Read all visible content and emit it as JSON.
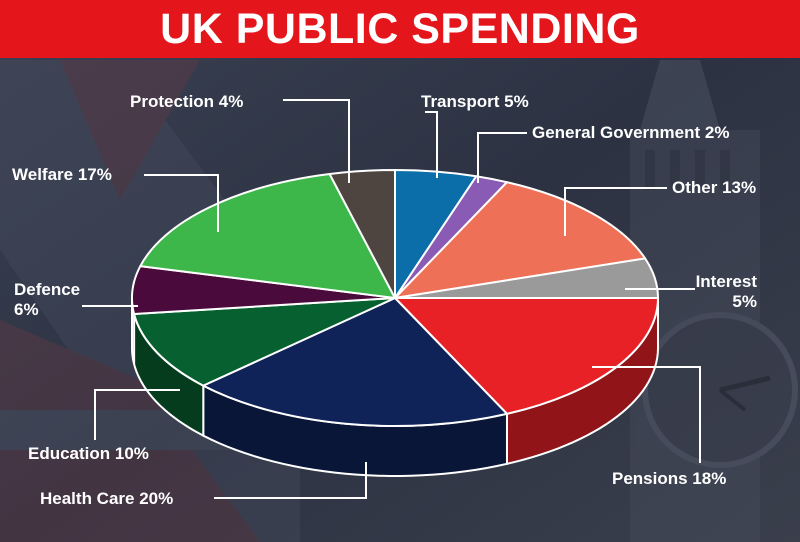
{
  "title": "UK PUBLIC SPENDING",
  "chart_data": {
    "type": "pie",
    "title": "UK PUBLIC SPENDING",
    "slices": [
      {
        "name": "Transport",
        "value": 5,
        "label": "Transport 5%",
        "color": "#0b6ea8"
      },
      {
        "name": "General Government",
        "value": 2,
        "label": "General Government 2%",
        "color": "#8a5bb5"
      },
      {
        "name": "Other",
        "value": 13,
        "label": "Other 13%",
        "color": "#ee7057"
      },
      {
        "name": "Interest",
        "value": 5,
        "label_lines": [
          "Interest",
          "5%"
        ],
        "color": "#9a9a9a"
      },
      {
        "name": "Pensions",
        "value": 18,
        "label": "Pensions 18%",
        "color": "#e82127"
      },
      {
        "name": "Health Care",
        "value": 20,
        "label": "Health Care 20%",
        "color": "#0f2358"
      },
      {
        "name": "Education",
        "value": 10,
        "label": "Education 10%",
        "color": "#07602f"
      },
      {
        "name": "Defence",
        "value": 6,
        "label_lines": [
          "Defence",
          "6%"
        ],
        "color": "#4a0a3c"
      },
      {
        "name": "Welfare",
        "value": 17,
        "label": "Welfare 17%",
        "color": "#3db64a"
      },
      {
        "name": "Protection",
        "value": 4,
        "label": "Protection 4%",
        "color": "#4f4540"
      }
    ]
  }
}
